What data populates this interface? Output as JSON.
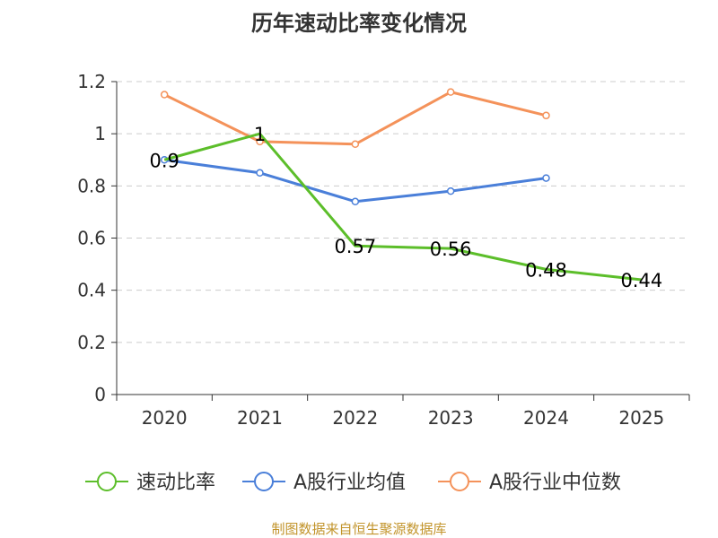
{
  "title": "历年速动比率变化情况",
  "source": "制图数据来自恒生聚源数据库",
  "colors": {
    "quick_ratio": "#5cbe2a",
    "industry_mean": "#4a7fd9",
    "industry_median": "#f4925a",
    "grid": "#cccccc",
    "axis": "#333333",
    "text": "#333333"
  },
  "chart_data": {
    "type": "line",
    "title": "历年速动比率变化情况",
    "categories": [
      "2020",
      "2021",
      "2022",
      "2023",
      "2024",
      "2025"
    ],
    "ylim": [
      0,
      1.2
    ],
    "yticks": [
      0,
      0.2,
      0.4,
      0.6,
      0.8,
      1,
      1.2
    ],
    "ytick_labels": [
      "0",
      "0.2",
      "0.4",
      "0.6",
      "0.8",
      "1",
      "1.2"
    ],
    "grid": true,
    "legend_position": "bottom",
    "series": [
      {
        "key": "quick_ratio",
        "name": "速动比率",
        "values": [
          0.9,
          1,
          0.57,
          0.56,
          0.48,
          0.44
        ],
        "labels": [
          "0.9",
          "1",
          "0.57",
          "0.56",
          "0.48",
          "0.44"
        ],
        "show_labels": true,
        "show_markers": false
      },
      {
        "key": "industry_mean",
        "name": "A股行业均值",
        "values": [
          0.9,
          0.85,
          0.74,
          0.78,
          0.83,
          null
        ],
        "show_labels": false,
        "show_markers": true
      },
      {
        "key": "industry_median",
        "name": "A股行业中位数",
        "values": [
          1.15,
          0.97,
          0.96,
          1.16,
          1.07,
          null
        ],
        "show_labels": false,
        "show_markers": true
      }
    ]
  }
}
